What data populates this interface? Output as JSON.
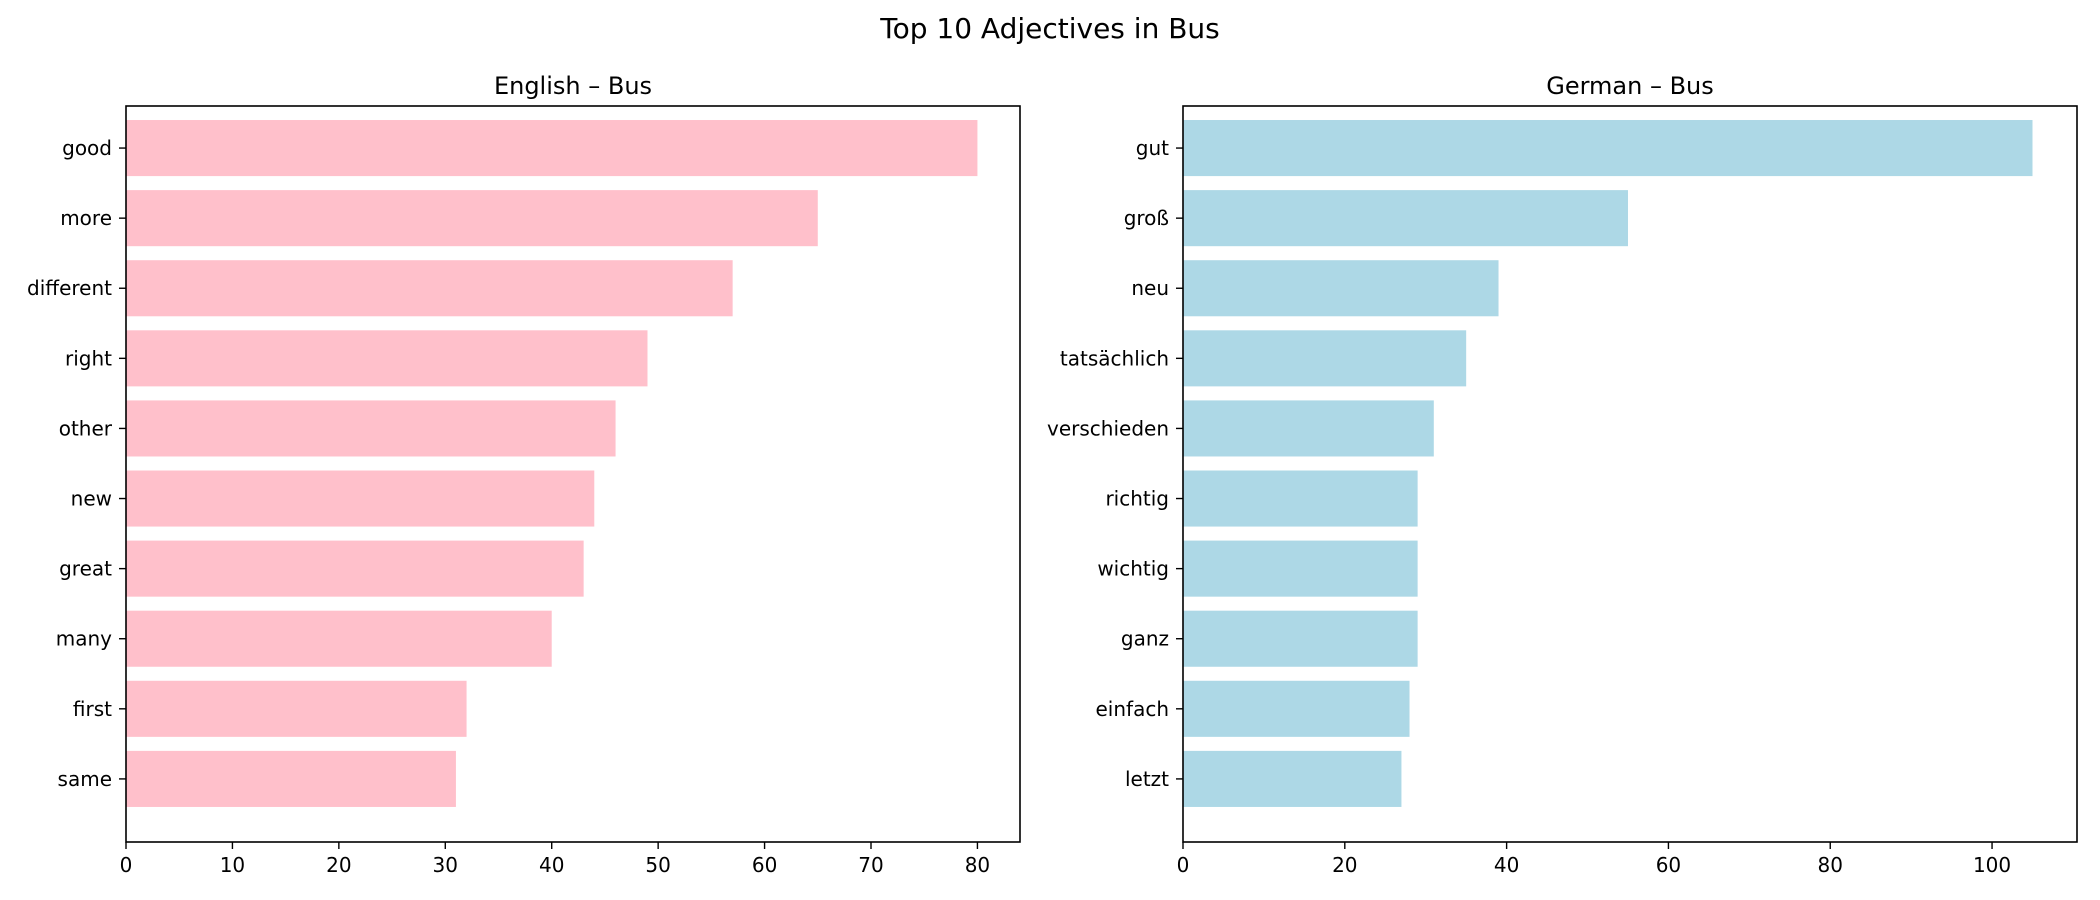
{
  "figure_title": "Top 10 Adjectives in Bus",
  "chart_data": [
    {
      "type": "bar",
      "orientation": "horizontal",
      "title": "English – Bus",
      "xlabel": "",
      "ylabel": "",
      "color": "#ffc0cb",
      "xlim": [
        0,
        84
      ],
      "xticks": [
        0,
        10,
        20,
        30,
        40,
        50,
        60,
        70,
        80
      ],
      "grid": false,
      "categories": [
        "good",
        "more",
        "different",
        "right",
        "other",
        "new",
        "great",
        "many",
        "first",
        "same"
      ],
      "values": [
        80,
        65,
        57,
        49,
        46,
        44,
        43,
        40,
        32,
        31
      ]
    },
    {
      "type": "bar",
      "orientation": "horizontal",
      "title": "German – Bus",
      "xlabel": "",
      "ylabel": "",
      "color": "#add8e6",
      "xlim": [
        0,
        110.5
      ],
      "xticks": [
        0,
        20,
        40,
        60,
        80,
        100
      ],
      "grid": false,
      "categories": [
        "gut",
        "groß",
        "neu",
        "tatsächlich",
        "verschieden",
        "richtig",
        "wichtig",
        "ganz",
        "einfach",
        "letzt"
      ],
      "values": [
        105,
        55,
        39,
        35,
        31,
        29,
        29,
        29,
        28,
        27
      ]
    }
  ]
}
